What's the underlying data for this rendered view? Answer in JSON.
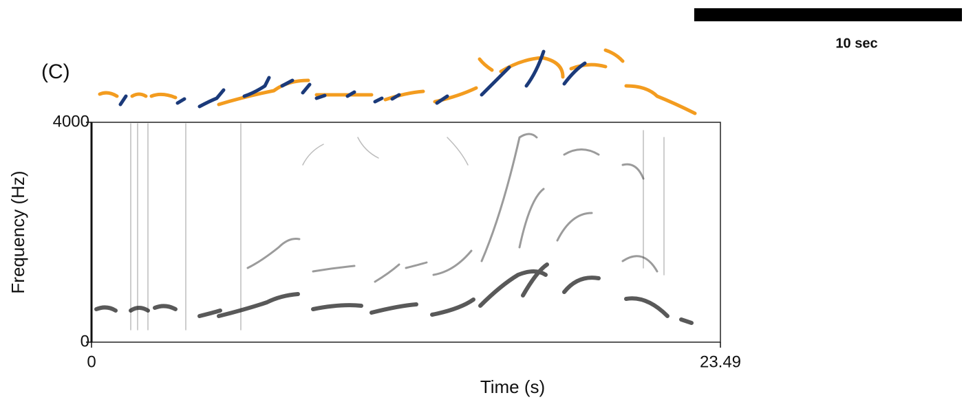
{
  "chart_data": {
    "type": "spectrogram",
    "panel_label": "(C)",
    "x_label": "Time (s)",
    "y_label": "Frequency (Hz)",
    "xlim": [
      0,
      23.49
    ],
    "ylim": [
      0,
      4000
    ],
    "xticks": [
      0,
      23.49
    ],
    "yticks": [
      0,
      4000
    ],
    "scale_bar": {
      "value": 10,
      "label": "10 sec"
    }
  }
}
